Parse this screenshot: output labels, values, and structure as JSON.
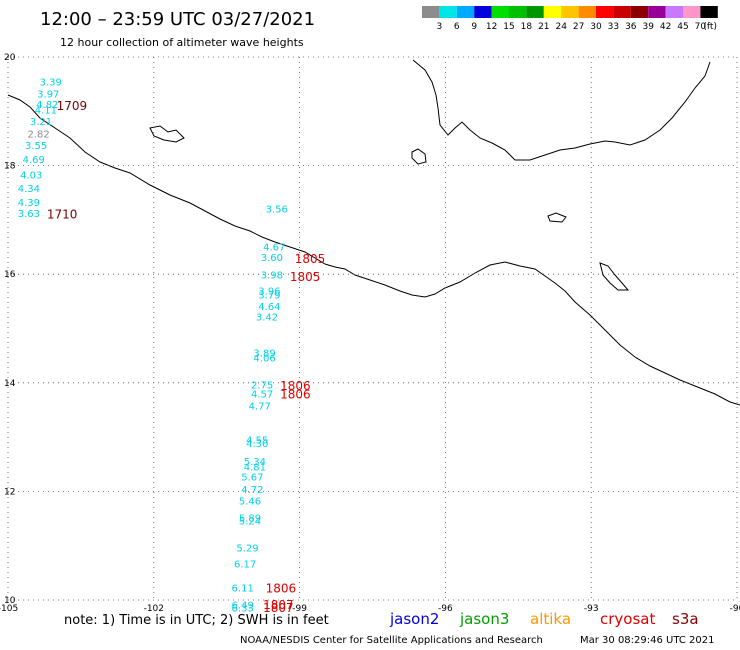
{
  "header": {
    "title": "12:00 – 23:59 UTC 03/27/2021",
    "subtitle": "12 hour collection of altimeter wave heights"
  },
  "scale": {
    "unit": "(ft)",
    "colors": [
      "#8c8c8c",
      "#00e6e6",
      "#00aaff",
      "#0000dd",
      "#00dd00",
      "#00c000",
      "#009600",
      "#ffff00",
      "#ffc400",
      "#ff8c00",
      "#ff0000",
      "#c80000",
      "#8c0000",
      "#960096",
      "#c878ff",
      "#ff96c8",
      "#000000"
    ],
    "labels": [
      "3",
      "6",
      "9",
      "12",
      "15",
      "18",
      "21",
      "24",
      "27",
      "30",
      "33",
      "36",
      "39",
      "42",
      "45",
      "70"
    ]
  },
  "map": {
    "lon_min": -105,
    "lon_max": -90,
    "lat_min": 10,
    "lat_max": 20,
    "lon_ticks": [
      "-105",
      "-102",
      "-99",
      "-96",
      "-93",
      "-90"
    ],
    "lat_ticks": [
      "20",
      "18",
      "16",
      "14",
      "12",
      "10"
    ]
  },
  "observations": [
    {
      "lat": 19.55,
      "lon": -104.35,
      "value": "3.39",
      "color": "#00d2e6"
    },
    {
      "lat": 19.33,
      "lon": -104.4,
      "value": "3.97",
      "color": "#00d2e6"
    },
    {
      "lat": 19.13,
      "lon": -104.42,
      "value": "4.82",
      "color": "#00d2e6"
    },
    {
      "lat": 19.03,
      "lon": -104.45,
      "value": "4.11",
      "color": "#00d2e6"
    },
    {
      "lat": 18.82,
      "lon": -104.55,
      "value": "3.21",
      "color": "#00d2e6"
    },
    {
      "lat": 18.59,
      "lon": -104.6,
      "value": "2.82",
      "color": "#8c8c8c"
    },
    {
      "lat": 18.38,
      "lon": -104.65,
      "value": "3.55",
      "color": "#00d2e6"
    },
    {
      "lat": 18.12,
      "lon": -104.7,
      "value": "4.69",
      "color": "#00d2e6"
    },
    {
      "lat": 17.84,
      "lon": -104.75,
      "value": "4.03",
      "color": "#00d2e6"
    },
    {
      "lat": 17.59,
      "lon": -104.8,
      "value": "4.34",
      "color": "#00d2e6"
    },
    {
      "lat": 17.33,
      "lon": -104.8,
      "value": "4.39",
      "color": "#00d2e6"
    },
    {
      "lat": 17.13,
      "lon": -104.8,
      "value": "3.63",
      "color": "#00d2e6"
    },
    {
      "lat": 17.21,
      "lon": -99.7,
      "value": "3.56",
      "color": "#00d2e6"
    },
    {
      "lat": 16.51,
      "lon": -99.75,
      "value": "4.67",
      "color": "#00d2e6"
    },
    {
      "lat": 16.32,
      "lon": -99.8,
      "value": "3.60",
      "color": "#00d2e6"
    },
    {
      "lat": 15.99,
      "lon": -99.8,
      "value": "3.98",
      "color": "#00d2e6"
    },
    {
      "lat": 15.7,
      "lon": -99.85,
      "value": "3.96",
      "color": "#00d2e6"
    },
    {
      "lat": 15.63,
      "lon": -99.85,
      "value": "3.79",
      "color": "#00d2e6"
    },
    {
      "lat": 15.41,
      "lon": -99.85,
      "value": "4.64",
      "color": "#00d2e6"
    },
    {
      "lat": 15.22,
      "lon": -99.9,
      "value": "3.42",
      "color": "#00d2e6"
    },
    {
      "lat": 14.56,
      "lon": -99.95,
      "value": "3.89",
      "color": "#00d2e6"
    },
    {
      "lat": 14.47,
      "lon": -99.95,
      "value": "4.06",
      "color": "#00d2e6"
    },
    {
      "lat": 13.97,
      "lon": -100.0,
      "value": "2.75",
      "color": "#00d2e6"
    },
    {
      "lat": 13.8,
      "lon": -100.0,
      "value": "4.57",
      "color": "#00d2e6"
    },
    {
      "lat": 13.58,
      "lon": -100.05,
      "value": "4.77",
      "color": "#00d2e6"
    },
    {
      "lat": 12.96,
      "lon": -100.1,
      "value": "4.55",
      "color": "#00d2e6"
    },
    {
      "lat": 12.89,
      "lon": -100.1,
      "value": "4.30",
      "color": "#00d2e6"
    },
    {
      "lat": 12.56,
      "lon": -100.15,
      "value": "5.34",
      "color": "#00d2e6"
    },
    {
      "lat": 12.46,
      "lon": -100.15,
      "value": "4.81",
      "color": "#00d2e6"
    },
    {
      "lat": 12.27,
      "lon": -100.2,
      "value": "5.67",
      "color": "#00d2e6"
    },
    {
      "lat": 12.04,
      "lon": -100.2,
      "value": "4.72",
      "color": "#00d2e6"
    },
    {
      "lat": 11.83,
      "lon": -100.25,
      "value": "5.46",
      "color": "#00d2e6"
    },
    {
      "lat": 11.52,
      "lon": -100.25,
      "value": "5.89",
      "color": "#00d2e6"
    },
    {
      "lat": 11.46,
      "lon": -100.25,
      "value": "5.24",
      "color": "#00d2e6"
    },
    {
      "lat": 10.97,
      "lon": -100.3,
      "value": "5.29",
      "color": "#00d2e6"
    },
    {
      "lat": 10.67,
      "lon": -100.35,
      "value": "6.17",
      "color": "#00d2e6"
    },
    {
      "lat": 10.23,
      "lon": -100.4,
      "value": "6.11",
      "color": "#00d2e6"
    },
    {
      "lat": 9.92,
      "lon": -100.4,
      "value": "6.49",
      "color": "#00d2e6"
    },
    {
      "lat": 9.86,
      "lon": -100.4,
      "value": "6.33",
      "color": "#00d2e6"
    }
  ],
  "time_labels": [
    {
      "lat": 19.12,
      "lon": -104.0,
      "text": "1709",
      "color": "#7a0000"
    },
    {
      "lat": 17.12,
      "lon": -104.2,
      "text": "1710",
      "color": "#7a0000"
    },
    {
      "lat": 16.3,
      "lon": -99.1,
      "text": "1805",
      "color": "#e00000"
    },
    {
      "lat": 15.97,
      "lon": -99.2,
      "text": "1805",
      "color": "#e00000"
    },
    {
      "lat": 13.96,
      "lon": -99.4,
      "text": "1806",
      "color": "#e00000"
    },
    {
      "lat": 13.8,
      "lon": -99.4,
      "text": "1806",
      "color": "#e00000"
    },
    {
      "lat": 10.23,
      "lon": -99.7,
      "text": "1806",
      "color": "#e00000"
    },
    {
      "lat": 9.93,
      "lon": -99.75,
      "text": "1807",
      "color": "#e00000"
    },
    {
      "lat": 9.87,
      "lon": -99.75,
      "text": "1807",
      "color": "#e00000"
    }
  ],
  "footer": {
    "note": "note: 1) Time is in UTC; 2) SWH is in feet",
    "credit": "NOAA/NESDIS Center for Satellite Applications and Research",
    "timestamp": "Mar 30 08:29:46 UTC 2021",
    "satellites": [
      {
        "name": "jason2",
        "color": "#0000dc"
      },
      {
        "name": "jason3",
        "color": "#00a000"
      },
      {
        "name": "altika",
        "color": "#ff9600"
      },
      {
        "name": "cryosat",
        "color": "#dc0000"
      },
      {
        "name": "s3a",
        "color": "#8c0000"
      }
    ]
  }
}
